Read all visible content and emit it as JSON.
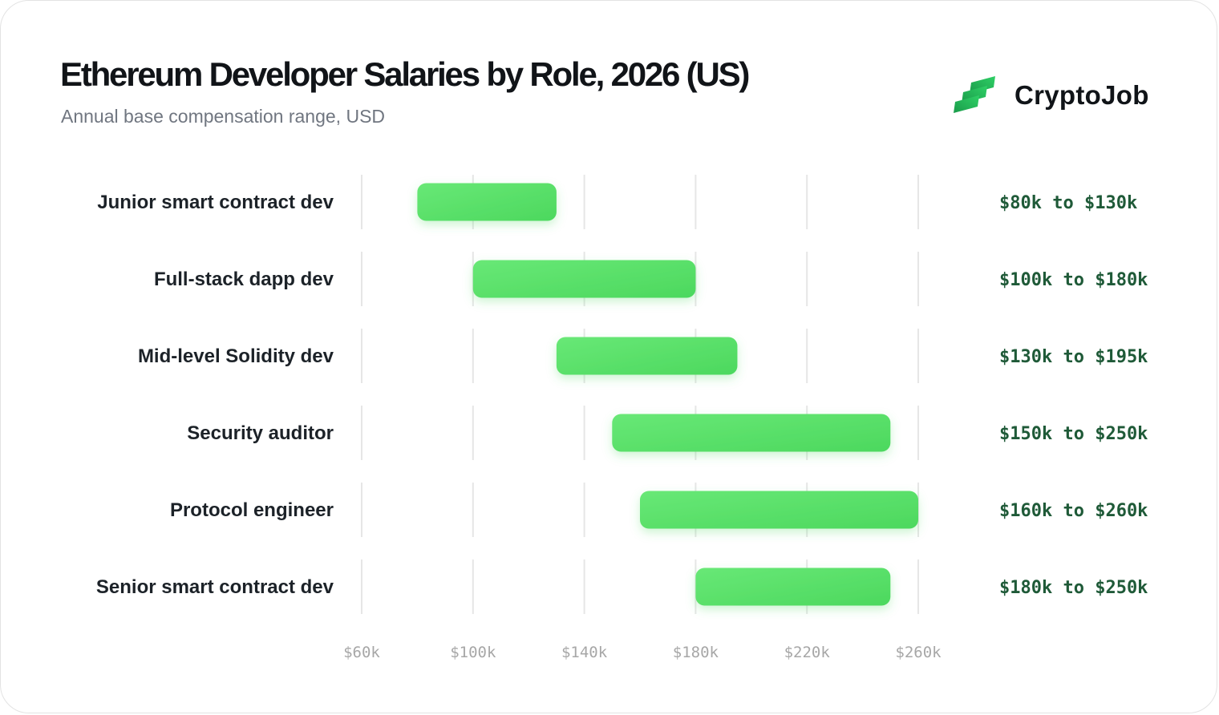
{
  "header": {
    "title": "Ethereum Developer Salaries by Role, 2026 (US)",
    "subtitle": "Annual base compensation range, USD"
  },
  "brand": {
    "name": "CryptoJob",
    "logo_icon": "cryptojob-logo-icon"
  },
  "colors": {
    "bar_start": "#68e876",
    "bar_end": "#4cd85e",
    "range_text": "#1f5a38",
    "grid": "#e6e6e6",
    "tick_text": "#a7a7a7"
  },
  "chart_data": {
    "type": "bar",
    "orientation": "horizontal",
    "title": "Ethereum Developer Salaries by Role, 2026 (US)",
    "subtitle": "Annual base compensation range, USD",
    "xlim": [
      60,
      260
    ],
    "x_unit": "thousand USD",
    "ticks": [
      60,
      100,
      140,
      180,
      220,
      260
    ],
    "tick_labels": [
      "$60k",
      "$100k",
      "$140k",
      "$180k",
      "$220k",
      "$260k"
    ],
    "grid": true,
    "categories": [
      "Junior smart contract dev",
      "Full-stack dapp dev",
      "Mid-level Solidity dev",
      "Security auditor",
      "Protocol engineer",
      "Senior smart contract dev"
    ],
    "ranges": [
      {
        "min": 80,
        "max": 130,
        "label": "$80k to $130k"
      },
      {
        "min": 100,
        "max": 180,
        "label": "$100k to $180k"
      },
      {
        "min": 130,
        "max": 195,
        "label": "$130k to $195k"
      },
      {
        "min": 150,
        "max": 250,
        "label": "$150k to $250k"
      },
      {
        "min": 160,
        "max": 260,
        "label": "$160k to $260k"
      },
      {
        "min": 180,
        "max": 250,
        "label": "$180k to $250k"
      }
    ]
  }
}
